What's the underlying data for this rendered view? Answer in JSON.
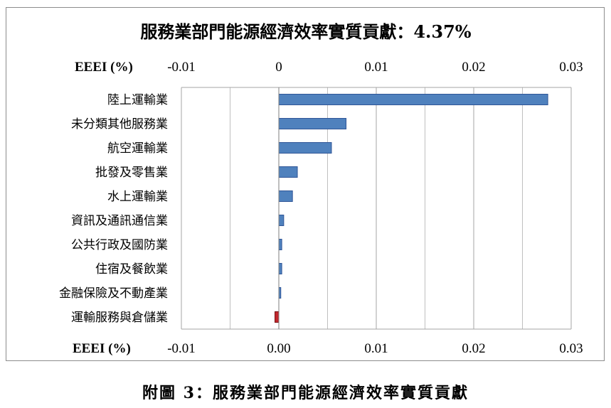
{
  "chart_data": {
    "type": "bar",
    "orientation": "horizontal",
    "title": "服務業部門能源經濟效率實質貢獻：4.37%",
    "xlabel": "EEEI (%)",
    "top_tick_labels": [
      "-0.01",
      "0",
      "0.01",
      "0.02",
      "0.03"
    ],
    "bottom_tick_labels": [
      "-0.01",
      "0.00",
      "0.01",
      "0.02",
      "0.03"
    ],
    "xlim": [
      -0.01,
      0.03
    ],
    "grid": true,
    "categories": [
      "陸上運輸業",
      "未分類其他服務業",
      "航空運輸業",
      "批發及零售業",
      "水上運輸業",
      "資訊及通訊通信業",
      "公共行政及國防業",
      "住宿及餐飲業",
      "金融保險及不動產業",
      "運輸服務與倉儲業"
    ],
    "values": [
      0.0276,
      0.0069,
      0.0054,
      0.0019,
      0.0014,
      0.0005,
      0.0003,
      0.0003,
      0.0002,
      -0.0004
    ],
    "colors": {
      "positive": "#4f81bd",
      "negative": "#c0272d",
      "positive_edge": "#2f5597",
      "negative_edge": "#7b1013"
    }
  },
  "caption": "附圖 3：服務業部門能源經濟效率實質貢獻"
}
